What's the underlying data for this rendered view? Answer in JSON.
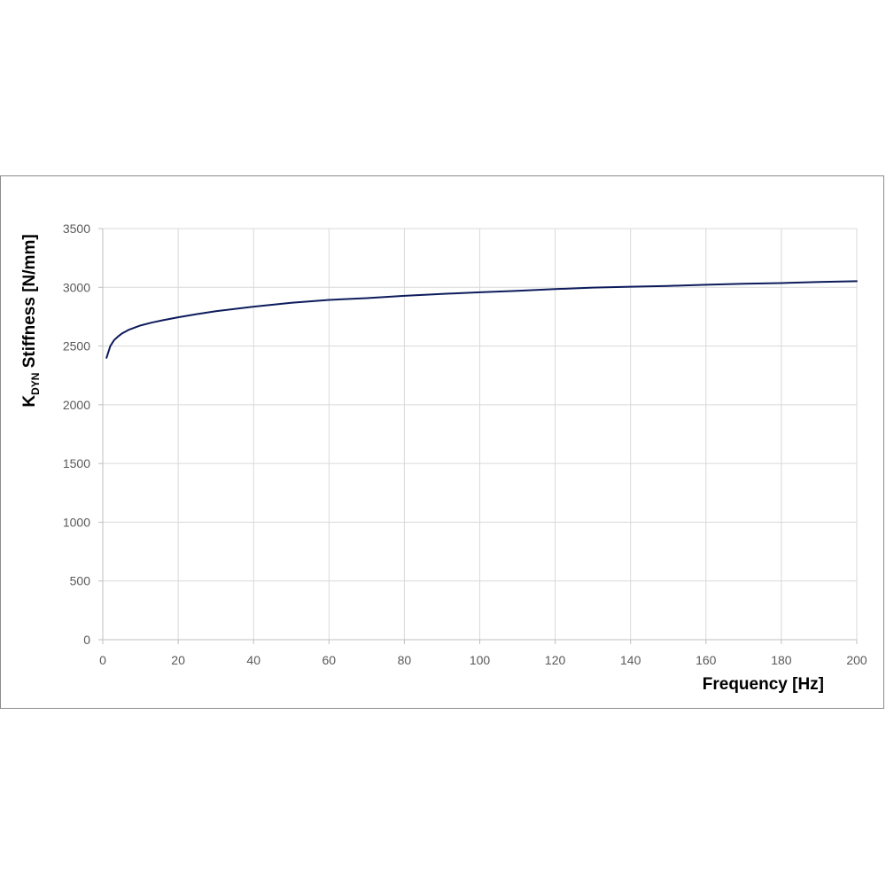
{
  "chart_data": {
    "type": "line",
    "title": "",
    "xlabel": "Frequency [Hz]",
    "ylabel": {
      "main": "K",
      "subscript": "DYN",
      "rest": " Stiffness [N/mm]"
    },
    "xlim": [
      0,
      200
    ],
    "ylim": [
      0,
      3500
    ],
    "x_ticks": [
      0,
      20,
      40,
      60,
      80,
      100,
      120,
      140,
      160,
      180,
      200
    ],
    "y_ticks": [
      0,
      500,
      1000,
      1500,
      2000,
      2500,
      3000,
      3500
    ],
    "grid": true,
    "line_color": "#0d1b5c",
    "series": [
      {
        "x": [
          1,
          2,
          3,
          4,
          5,
          7,
          10,
          13,
          16,
          20,
          25,
          30,
          40,
          50,
          60,
          70,
          80,
          90,
          100,
          110,
          120,
          130,
          140,
          150,
          160,
          170,
          180,
          190,
          200
        ],
        "values": [
          2400,
          2500,
          2550,
          2580,
          2605,
          2640,
          2675,
          2700,
          2720,
          2745,
          2772,
          2797,
          2835,
          2868,
          2893,
          2908,
          2928,
          2944,
          2958,
          2970,
          2985,
          2997,
          3005,
          3012,
          3022,
          3030,
          3036,
          3046,
          3052
        ]
      }
    ]
  }
}
